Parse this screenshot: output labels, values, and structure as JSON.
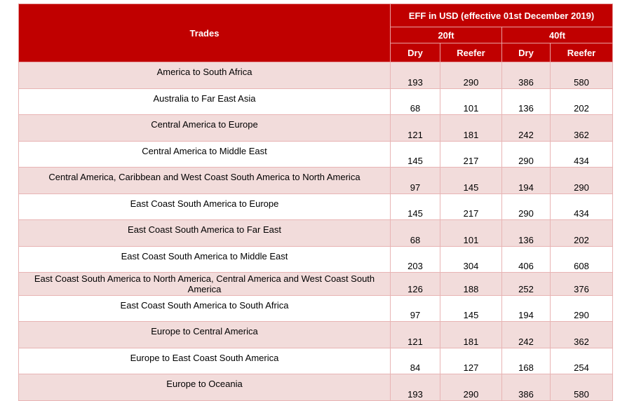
{
  "table": {
    "header": {
      "trades_label": "Trades",
      "eff_label": "EFF in USD (effective 01st December 2019)",
      "size_20": "20ft",
      "size_40": "40ft",
      "dry": "Dry",
      "reefer": "Reefer"
    },
    "rows": [
      {
        "trade": "America to South Africa",
        "dry20": "193",
        "reefer20": "290",
        "dry40": "386",
        "reefer40": "580"
      },
      {
        "trade": "Australia to Far East Asia",
        "dry20": "68",
        "reefer20": "101",
        "dry40": "136",
        "reefer40": "202"
      },
      {
        "trade": "Central America to Europe",
        "dry20": "121",
        "reefer20": "181",
        "dry40": "242",
        "reefer40": "362"
      },
      {
        "trade": "Central America to Middle East",
        "dry20": "145",
        "reefer20": "217",
        "dry40": "290",
        "reefer40": "434"
      },
      {
        "trade": "Central America, Caribbean and West Coast South America to North America",
        "dry20": "97",
        "reefer20": "145",
        "dry40": "194",
        "reefer40": "290"
      },
      {
        "trade": "East Coast South America to Europe",
        "dry20": "145",
        "reefer20": "217",
        "dry40": "290",
        "reefer40": "434"
      },
      {
        "trade": "East Coast South America to Far East",
        "dry20": "68",
        "reefer20": "101",
        "dry40": "136",
        "reefer40": "202"
      },
      {
        "trade": "East Coast South America to Middle East",
        "dry20": "203",
        "reefer20": "304",
        "dry40": "406",
        "reefer40": "608"
      },
      {
        "trade": "East Coast South America to North America, Central America and West Coast South America",
        "dry20": "126",
        "reefer20": "188",
        "dry40": "252",
        "reefer40": "376"
      },
      {
        "trade": "East Coast South America to South Africa",
        "dry20": "97",
        "reefer20": "145",
        "dry40": "194",
        "reefer40": "290"
      },
      {
        "trade": "Europe to Central America",
        "dry20": "121",
        "reefer20": "181",
        "dry40": "242",
        "reefer40": "362"
      },
      {
        "trade": "Europe to East Coast South America",
        "dry20": "84",
        "reefer20": "127",
        "dry40": "168",
        "reefer40": "254"
      },
      {
        "trade": "Europe to Oceania",
        "dry20": "193",
        "reefer20": "290",
        "dry40": "386",
        "reefer40": "580"
      }
    ]
  }
}
